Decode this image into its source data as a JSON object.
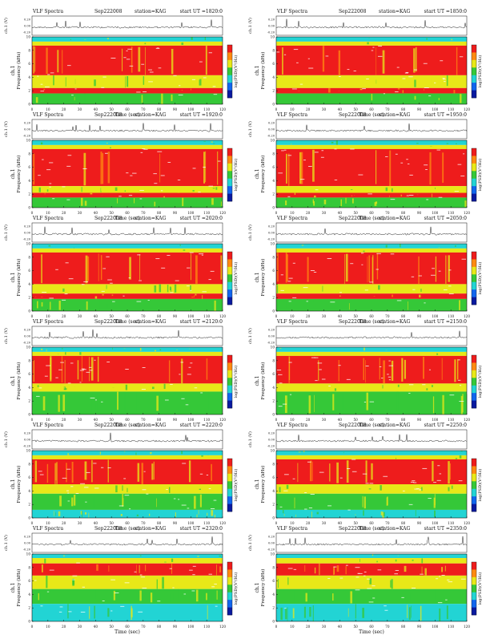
{
  "page": {
    "labels": {
      "header_prefix": "VLF Spectra",
      "wave_axis": "ch.1 (V)",
      "freq_axis": "ch.1\nFrequency (kHz)",
      "time_axis": "Time (sec)",
      "colorbar_label": "log(PSD)(V²/Hz)",
      "station_prefix": "station=",
      "ut_prefix": "start UT ="
    },
    "colors": {
      "red": "#ee1c1c",
      "orange": "#ff8a10",
      "yellow": "#e8e818",
      "green": "#35c838",
      "cyan": "#22d4d4",
      "blue": "#1166ee",
      "navy": "#0a1aa0",
      "dark": "#222222"
    }
  },
  "chart_data": [
    {
      "type": "heatmap",
      "date": "Sep222008",
      "station": "KAG",
      "start_ut": "1820:0",
      "xlabel": "Time (sec)",
      "ylabel": "ch.1 Frequency (kHz)",
      "colorbar_label": "log(PSD)(V²/Hz)",
      "xlim": [
        0,
        120
      ],
      "ylim": [
        0,
        10
      ],
      "x_ticks": [
        0,
        10,
        20,
        30,
        40,
        50,
        60,
        70,
        80,
        90,
        100,
        110,
        120
      ],
      "y_ticks": [
        0,
        2,
        4,
        6,
        8,
        10
      ],
      "wave_ylim": [
        -0.2,
        0.2
      ],
      "wave_ticks": [
        "0.20",
        "0.00",
        "-0.20"
      ],
      "bands": [
        {
          "from": 9.3,
          "to": 10.0,
          "level": "cyan"
        },
        {
          "from": 8.7,
          "to": 9.3,
          "level": "yellow"
        },
        {
          "from": 4.3,
          "to": 8.7,
          "level": "red"
        },
        {
          "from": 2.4,
          "to": 4.3,
          "level": "yellow"
        },
        {
          "from": 1.6,
          "to": 2.4,
          "level": "red"
        },
        {
          "from": 0.0,
          "to": 1.6,
          "level": "green"
        }
      ]
    },
    {
      "type": "heatmap",
      "date": "Sep222008",
      "station": "KAG",
      "start_ut": "1850:0",
      "xlabel": "Time (sec)",
      "ylabel": "ch.1 Frequency (kHz)",
      "colorbar_label": "log(PSD)(V²/Hz)",
      "xlim": [
        0,
        120
      ],
      "ylim": [
        0,
        10
      ],
      "x_ticks": [
        0,
        10,
        20,
        30,
        40,
        50,
        60,
        70,
        80,
        90,
        100,
        110,
        120
      ],
      "y_ticks": [
        0,
        2,
        4,
        6,
        8,
        10
      ],
      "wave_ylim": [
        -0.2,
        0.2
      ],
      "wave_ticks": [
        "0.20",
        "0.00",
        "-0.20"
      ],
      "bands": [
        {
          "from": 9.3,
          "to": 10.0,
          "level": "cyan"
        },
        {
          "from": 8.7,
          "to": 9.3,
          "level": "yellow"
        },
        {
          "from": 4.3,
          "to": 8.7,
          "level": "red"
        },
        {
          "from": 2.4,
          "to": 4.3,
          "level": "yellow"
        },
        {
          "from": 1.6,
          "to": 2.4,
          "level": "red"
        },
        {
          "from": 0.0,
          "to": 1.6,
          "level": "green"
        }
      ]
    },
    {
      "type": "heatmap",
      "date": "Sep222008",
      "station": "KAG",
      "start_ut": "1920:0",
      "xlabel": "Time (sec)",
      "ylabel": "ch.1 Frequency (kHz)",
      "colorbar_label": "log(PSD)(V²/Hz)",
      "xlim": [
        0,
        120
      ],
      "ylim": [
        0,
        10
      ],
      "x_ticks": [
        0,
        10,
        20,
        30,
        40,
        50,
        60,
        70,
        80,
        90,
        100,
        110,
        120
      ],
      "y_ticks": [
        0,
        2,
        4,
        6,
        8,
        10
      ],
      "wave_ylim": [
        -0.2,
        0.2
      ],
      "wave_ticks": [
        "0.20",
        "0.00",
        "-0.20"
      ],
      "bands": [
        {
          "from": 9.3,
          "to": 10.0,
          "level": "cyan"
        },
        {
          "from": 8.7,
          "to": 9.3,
          "level": "yellow"
        },
        {
          "from": 3.2,
          "to": 8.7,
          "level": "red"
        },
        {
          "from": 2.2,
          "to": 3.2,
          "level": "yellow"
        },
        {
          "from": 1.5,
          "to": 2.2,
          "level": "red"
        },
        {
          "from": 0.0,
          "to": 1.5,
          "level": "green"
        }
      ]
    },
    {
      "type": "heatmap",
      "date": "Sep222008",
      "station": "KAG",
      "start_ut": "1950:0",
      "xlabel": "Time (sec)",
      "ylabel": "ch.1 Frequency (kHz)",
      "colorbar_label": "log(PSD)(V²/Hz)",
      "xlim": [
        0,
        120
      ],
      "ylim": [
        0,
        10
      ],
      "x_ticks": [
        0,
        10,
        20,
        30,
        40,
        50,
        60,
        70,
        80,
        90,
        100,
        110,
        120
      ],
      "y_ticks": [
        0,
        2,
        4,
        6,
        8,
        10
      ],
      "wave_ylim": [
        -0.2,
        0.2
      ],
      "wave_ticks": [
        "0.20",
        "0.00",
        "-0.20"
      ],
      "bands": [
        {
          "from": 9.3,
          "to": 10.0,
          "level": "cyan"
        },
        {
          "from": 8.7,
          "to": 9.3,
          "level": "yellow"
        },
        {
          "from": 3.2,
          "to": 8.7,
          "level": "red"
        },
        {
          "from": 2.2,
          "to": 3.2,
          "level": "yellow"
        },
        {
          "from": 1.5,
          "to": 2.2,
          "level": "red"
        },
        {
          "from": 0.0,
          "to": 1.5,
          "level": "green"
        }
      ]
    },
    {
      "type": "heatmap",
      "date": "Sep222008",
      "station": "KAG",
      "start_ut": "2020:0",
      "xlabel": "Time (sec)",
      "ylabel": "ch.1 Frequency (kHz)",
      "colorbar_label": "log(PSD)(V²/Hz)",
      "xlim": [
        0,
        120
      ],
      "ylim": [
        0,
        10
      ],
      "x_ticks": [
        0,
        10,
        20,
        30,
        40,
        50,
        60,
        70,
        80,
        90,
        100,
        110,
        120
      ],
      "y_ticks": [
        0,
        2,
        4,
        6,
        8,
        10
      ],
      "wave_ylim": [
        -0.2,
        0.2
      ],
      "wave_ticks": [
        "0.20",
        "0.00",
        "-0.20"
      ],
      "bands": [
        {
          "from": 9.3,
          "to": 10.0,
          "level": "cyan"
        },
        {
          "from": 8.7,
          "to": 9.3,
          "level": "yellow"
        },
        {
          "from": 4.0,
          "to": 8.7,
          "level": "red"
        },
        {
          "from": 2.6,
          "to": 4.0,
          "level": "yellow"
        },
        {
          "from": 1.8,
          "to": 2.6,
          "level": "red"
        },
        {
          "from": 0.0,
          "to": 1.8,
          "level": "green"
        }
      ]
    },
    {
      "type": "heatmap",
      "date": "Sep222008",
      "station": "KAG",
      "start_ut": "2050:0",
      "xlabel": "Time (sec)",
      "ylabel": "ch.1 Frequency (kHz)",
      "colorbar_label": "log(PSD)(V²/Hz)",
      "xlim": [
        0,
        120
      ],
      "ylim": [
        0,
        10
      ],
      "x_ticks": [
        0,
        10,
        20,
        30,
        40,
        50,
        60,
        70,
        80,
        90,
        100,
        110,
        120
      ],
      "y_ticks": [
        0,
        2,
        4,
        6,
        8,
        10
      ],
      "wave_ylim": [
        -0.2,
        0.2
      ],
      "wave_ticks": [
        "0.20",
        "0.00",
        "-0.20"
      ],
      "bands": [
        {
          "from": 9.3,
          "to": 10.0,
          "level": "cyan"
        },
        {
          "from": 8.7,
          "to": 9.3,
          "level": "yellow"
        },
        {
          "from": 4.0,
          "to": 8.7,
          "level": "red"
        },
        {
          "from": 2.6,
          "to": 4.0,
          "level": "yellow"
        },
        {
          "from": 1.8,
          "to": 2.6,
          "level": "red"
        },
        {
          "from": 0.0,
          "to": 1.8,
          "level": "green"
        }
      ]
    },
    {
      "type": "heatmap",
      "date": "Sep222008",
      "station": "KAG",
      "start_ut": "2120:0",
      "xlabel": "Time (sec)",
      "ylabel": "ch.1 Frequency (kHz)",
      "colorbar_label": "log(PSD)(V²/Hz)",
      "xlim": [
        0,
        120
      ],
      "ylim": [
        0,
        10
      ],
      "x_ticks": [
        0,
        10,
        20,
        30,
        40,
        50,
        60,
        70,
        80,
        90,
        100,
        110,
        120
      ],
      "y_ticks": [
        0,
        2,
        4,
        6,
        8,
        10
      ],
      "wave_ylim": [
        -0.2,
        0.2
      ],
      "wave_ticks": [
        "0.20",
        "0.00",
        "-0.20"
      ],
      "bands": [
        {
          "from": 9.3,
          "to": 10.0,
          "level": "cyan"
        },
        {
          "from": 8.7,
          "to": 9.3,
          "level": "yellow"
        },
        {
          "from": 4.6,
          "to": 8.7,
          "level": "red"
        },
        {
          "from": 3.4,
          "to": 4.6,
          "level": "yellow"
        },
        {
          "from": 0.0,
          "to": 3.4,
          "level": "green"
        }
      ]
    },
    {
      "type": "heatmap",
      "date": "Sep222008",
      "station": "KAG",
      "start_ut": "2150:0",
      "xlabel": "Time (sec)",
      "ylabel": "ch.1 Frequency (kHz)",
      "colorbar_label": "log(PSD)(V²/Hz)",
      "xlim": [
        0,
        120
      ],
      "ylim": [
        0,
        10
      ],
      "x_ticks": [
        0,
        10,
        20,
        30,
        40,
        50,
        60,
        70,
        80,
        90,
        100,
        110,
        120
      ],
      "y_ticks": [
        0,
        2,
        4,
        6,
        8,
        10
      ],
      "wave_ylim": [
        -0.2,
        0.2
      ],
      "wave_ticks": [
        "0.20",
        "0.00",
        "-0.20"
      ],
      "bands": [
        {
          "from": 9.3,
          "to": 10.0,
          "level": "cyan"
        },
        {
          "from": 8.7,
          "to": 9.3,
          "level": "yellow"
        },
        {
          "from": 4.6,
          "to": 8.7,
          "level": "red"
        },
        {
          "from": 3.4,
          "to": 4.6,
          "level": "yellow"
        },
        {
          "from": 0.0,
          "to": 3.4,
          "level": "green"
        }
      ]
    },
    {
      "type": "heatmap",
      "date": "Sep222008",
      "station": "KAG",
      "start_ut": "2220:0",
      "xlabel": "Time (sec)",
      "ylabel": "ch.1 Frequency (kHz)",
      "colorbar_label": "log(PSD)(V²/Hz)",
      "xlim": [
        0,
        120
      ],
      "ylim": [
        0,
        10
      ],
      "x_ticks": [
        0,
        10,
        20,
        30,
        40,
        50,
        60,
        70,
        80,
        90,
        100,
        110,
        120
      ],
      "y_ticks": [
        0,
        2,
        4,
        6,
        8,
        10
      ],
      "wave_ylim": [
        -0.2,
        0.2
      ],
      "wave_ticks": [
        "0.20",
        "0.00",
        "-0.20"
      ],
      "bands": [
        {
          "from": 9.3,
          "to": 10.0,
          "level": "cyan"
        },
        {
          "from": 8.7,
          "to": 9.3,
          "level": "yellow"
        },
        {
          "from": 5.0,
          "to": 8.7,
          "level": "red"
        },
        {
          "from": 3.6,
          "to": 5.0,
          "level": "yellow"
        },
        {
          "from": 1.2,
          "to": 3.6,
          "level": "green"
        },
        {
          "from": 0.0,
          "to": 1.2,
          "level": "cyan"
        }
      ]
    },
    {
      "type": "heatmap",
      "date": "Sep222008",
      "station": "KAG",
      "start_ut": "2250:0",
      "xlabel": "Time (sec)",
      "ylabel": "ch.1 Frequency (kHz)",
      "colorbar_label": "log(PSD)(V²/Hz)",
      "xlim": [
        0,
        120
      ],
      "ylim": [
        0,
        10
      ],
      "x_ticks": [
        0,
        10,
        20,
        30,
        40,
        50,
        60,
        70,
        80,
        90,
        100,
        110,
        120
      ],
      "y_ticks": [
        0,
        2,
        4,
        6,
        8,
        10
      ],
      "wave_ylim": [
        -0.2,
        0.2
      ],
      "wave_ticks": [
        "0.20",
        "0.00",
        "-0.20"
      ],
      "bands": [
        {
          "from": 9.3,
          "to": 10.0,
          "level": "cyan"
        },
        {
          "from": 8.7,
          "to": 9.3,
          "level": "yellow"
        },
        {
          "from": 5.0,
          "to": 8.7,
          "level": "red"
        },
        {
          "from": 3.6,
          "to": 5.0,
          "level": "yellow"
        },
        {
          "from": 1.2,
          "to": 3.6,
          "level": "green"
        },
        {
          "from": 0.0,
          "to": 1.2,
          "level": "cyan"
        }
      ]
    },
    {
      "type": "heatmap",
      "date": "Sep222008",
      "station": "KAG",
      "start_ut": "2320:0",
      "xlabel": "Time (sec)",
      "ylabel": "ch.1 Frequency (kHz)",
      "colorbar_label": "log(PSD)(V²/Hz)",
      "xlim": [
        0,
        120
      ],
      "ylim": [
        0,
        10
      ],
      "x_ticks": [
        0,
        10,
        20,
        30,
        40,
        50,
        60,
        70,
        80,
        90,
        100,
        110,
        120
      ],
      "y_ticks": [
        0,
        2,
        4,
        6,
        8,
        10
      ],
      "wave_ylim": [
        -0.2,
        0.2
      ],
      "wave_ticks": [
        "0.20",
        "0.00",
        "-0.20"
      ],
      "bands": [
        {
          "from": 9.4,
          "to": 10.0,
          "level": "cyan"
        },
        {
          "from": 8.6,
          "to": 9.4,
          "level": "yellow"
        },
        {
          "from": 6.8,
          "to": 8.6,
          "level": "red"
        },
        {
          "from": 4.8,
          "to": 6.8,
          "level": "yellow"
        },
        {
          "from": 2.6,
          "to": 4.8,
          "level": "green"
        },
        {
          "from": 0.0,
          "to": 2.6,
          "level": "cyan"
        }
      ]
    },
    {
      "type": "heatmap",
      "date": "Sep222008",
      "station": "KAG",
      "start_ut": "2350:0",
      "xlabel": "Time (sec)",
      "ylabel": "ch.1 Frequency (kHz)",
      "colorbar_label": "log(PSD)(V²/Hz)",
      "xlim": [
        0,
        120
      ],
      "ylim": [
        0,
        10
      ],
      "x_ticks": [
        0,
        10,
        20,
        30,
        40,
        50,
        60,
        70,
        80,
        90,
        100,
        110,
        120
      ],
      "y_ticks": [
        0,
        2,
        4,
        6,
        8,
        10
      ],
      "wave_ylim": [
        -0.2,
        0.2
      ],
      "wave_ticks": [
        "0.20",
        "0.00",
        "-0.20"
      ],
      "bands": [
        {
          "from": 9.4,
          "to": 10.0,
          "level": "cyan"
        },
        {
          "from": 8.6,
          "to": 9.4,
          "level": "yellow"
        },
        {
          "from": 6.8,
          "to": 8.6,
          "level": "red"
        },
        {
          "from": 4.8,
          "to": 6.8,
          "level": "yellow"
        },
        {
          "from": 2.6,
          "to": 4.8,
          "level": "green"
        },
        {
          "from": 0.0,
          "to": 2.6,
          "level": "cyan"
        }
      ]
    }
  ]
}
